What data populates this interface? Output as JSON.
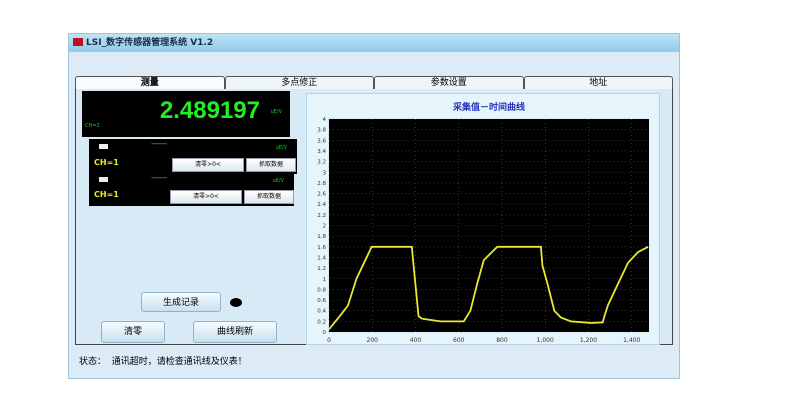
{
  "window": {
    "title": "LSI_数字传感器管理系统 V1.2"
  },
  "tabs": [
    {
      "label": "测量",
      "active": true
    },
    {
      "label": "多点修正"
    },
    {
      "label": "参数设置"
    },
    {
      "label": "地址"
    }
  ],
  "main_display": {
    "value": "2.489197",
    "unit": "uE/V",
    "label": "CH=2"
  },
  "channels": [
    {
      "label": "CH=1",
      "value": "--------",
      "unit": "uE/V",
      "zero_button": "清零>0<",
      "grab_button": "抓取数据"
    },
    {
      "label": "CH=1",
      "value": "--------",
      "unit": "uE/V",
      "zero_button": "清零>0<",
      "grab_button": "抓取数据"
    }
  ],
  "buttons": {
    "generate_record": "生成记录",
    "clear": "清零",
    "refresh_curve": "曲线刷新"
  },
  "status": {
    "label": "状态：",
    "message": "通讯超时，请检查通讯线及仪表！"
  },
  "chart_data": {
    "type": "line",
    "title": "采集值－时间曲线",
    "xlabel": "",
    "ylabel": "",
    "xlim": [
      0,
      1480
    ],
    "ylim": [
      0,
      4
    ],
    "xticks": [
      "0",
      "200",
      "400",
      "600",
      "800",
      "1,000",
      "1,200",
      "1,400"
    ],
    "xtick_values": [
      0,
      200,
      400,
      600,
      800,
      1000,
      1200,
      1400
    ],
    "yticks": [
      "0",
      "0.2",
      "0.4",
      "0.6",
      "0.8",
      "1",
      "1.2",
      "1.4",
      "1.6",
      "1.8",
      "2",
      "2.2",
      "2.4",
      "2.6",
      "2.8",
      "3",
      "3.2",
      "3.4",
      "3.6",
      "3.8",
      "4"
    ],
    "grid": true,
    "background": "#000000",
    "line_color": "#e8e832",
    "series": [
      {
        "x": [
          0,
          50,
          88,
          127,
          174,
          197,
          383,
          390,
          414,
          430,
          515,
          623,
          654,
          685,
          716,
          778,
          980,
          987,
          1011,
          1042,
          1073,
          1119,
          1212,
          1266,
          1274,
          1290,
          1336,
          1383,
          1429,
          1476
        ],
        "y": [
          0.05,
          0.3,
          0.5,
          1.0,
          1.4,
          1.6,
          1.6,
          1.3,
          0.3,
          0.25,
          0.2,
          0.2,
          0.4,
          0.9,
          1.35,
          1.6,
          1.6,
          1.25,
          0.9,
          0.4,
          0.27,
          0.2,
          0.17,
          0.18,
          0.3,
          0.5,
          0.9,
          1.3,
          1.5,
          1.6
        ]
      }
    ]
  }
}
